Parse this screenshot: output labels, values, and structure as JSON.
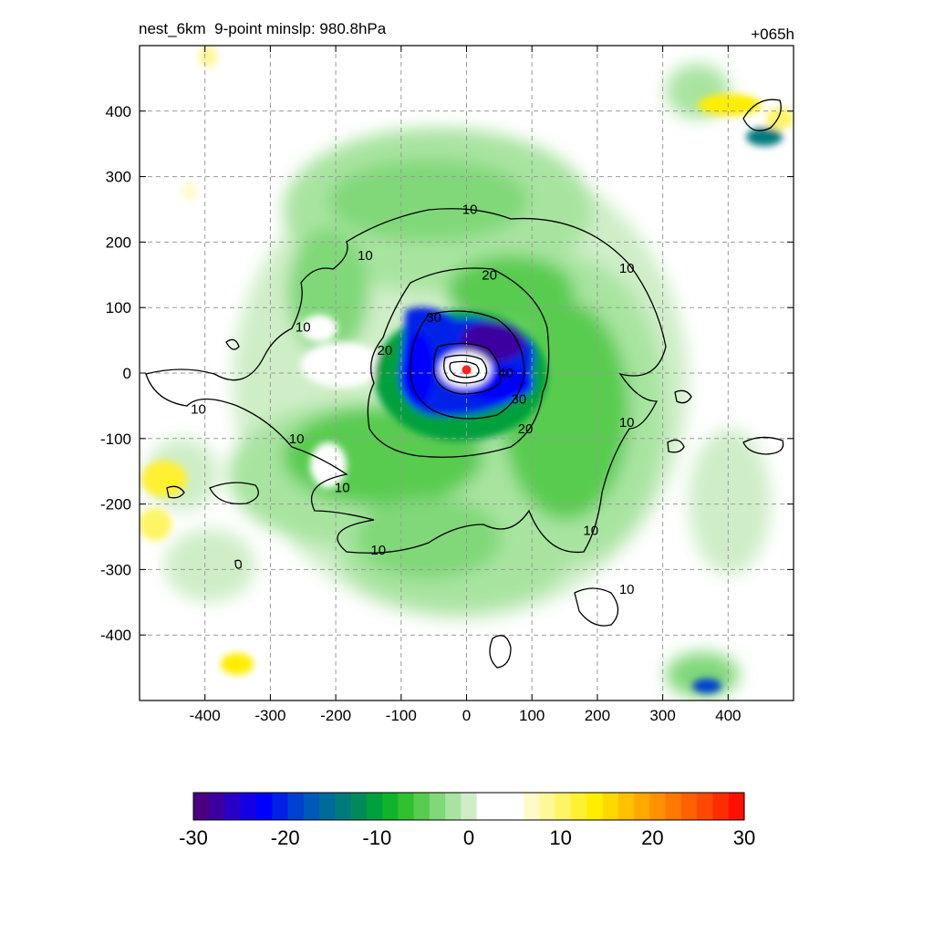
{
  "header": {
    "title": "nest_6km  9-point minslp: 980.8hPa",
    "forecast_hour": "+065h"
  },
  "chart_data": {
    "type": "heatmap",
    "title": "nest_6km  9-point minslp: 980.8hPa",
    "xlim": [
      -500,
      500
    ],
    "ylim": [
      -500,
      500
    ],
    "x_ticks": [
      -400,
      -300,
      -200,
      -100,
      0,
      100,
      200,
      300,
      400
    ],
    "y_ticks": [
      -400,
      -300,
      -200,
      -100,
      0,
      100,
      200,
      300,
      400
    ],
    "grid": true,
    "center_marker": {
      "x": 0,
      "y": 5,
      "color": "#ff2020"
    },
    "colorbar": {
      "range": [
        -30,
        30
      ],
      "tick_values": [
        -30,
        -20,
        -10,
        0,
        10,
        20,
        30
      ],
      "tick_labels": [
        "-30",
        "-20",
        "-10",
        "0",
        "10",
        "20",
        "30"
      ],
      "colors": [
        "#4b0082",
        "#3c00a0",
        "#2800c8",
        "#1400e6",
        "#0000ff",
        "#0020e8",
        "#0040d0",
        "#0058b8",
        "#006a9a",
        "#007a7a",
        "#008a5a",
        "#00a03c",
        "#10b42a",
        "#30c030",
        "#58cc50",
        "#80d878",
        "#a8e4a0",
        "#cfeec8",
        "#ffffff",
        "#ffffff",
        "#ffffff",
        "#fffbc8",
        "#fff896",
        "#fff464",
        "#fff032",
        "#ffee00",
        "#ffd800",
        "#ffc000",
        "#ffa800",
        "#ff9000",
        "#ff7800",
        "#ff6000",
        "#ff4800",
        "#ff2c00",
        "#ff1000"
      ]
    },
    "contour_labels": [
      {
        "text": "10",
        "x": 5,
        "y": 250
      },
      {
        "text": "10",
        "x": -155,
        "y": 180
      },
      {
        "text": "10",
        "x": 245,
        "y": 160
      },
      {
        "text": "10",
        "x": -250,
        "y": 70
      },
      {
        "text": "10",
        "x": -410,
        "y": -55
      },
      {
        "text": "10",
        "x": -260,
        "y": -100
      },
      {
        "text": "10",
        "x": -190,
        "y": -175
      },
      {
        "text": "10",
        "x": -135,
        "y": -270
      },
      {
        "text": "10",
        "x": 245,
        "y": -75
      },
      {
        "text": "10",
        "x": 190,
        "y": -240
      },
      {
        "text": "10",
        "x": 245,
        "y": -330
      },
      {
        "text": "20",
        "x": 35,
        "y": 150
      },
      {
        "text": "20",
        "x": -125,
        "y": 35
      },
      {
        "text": "20",
        "x": 90,
        "y": -85
      },
      {
        "text": "30",
        "x": -50,
        "y": 85
      },
      {
        "text": "30",
        "x": 80,
        "y": -40
      },
      {
        "text": "40",
        "x": 60,
        "y": 0
      }
    ]
  }
}
